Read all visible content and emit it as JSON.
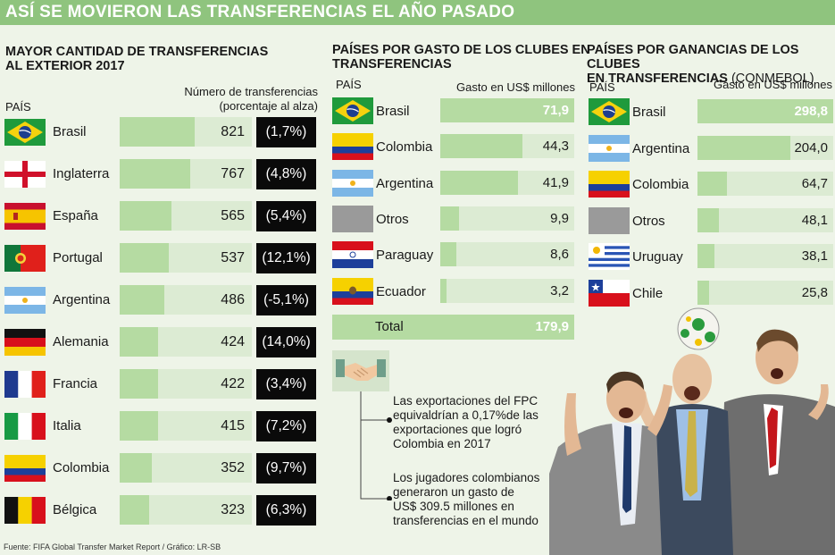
{
  "header": {
    "title": "ASÍ SE MOVIERON LAS TRANSFERENCIAS EL AÑO PASADO"
  },
  "left": {
    "title_line1": "MAYOR CANTIDAD DE TRANSFERENCIAS",
    "title_line2": "AL EXTERIOR 2017",
    "col_country": "PAÍS",
    "col_value_line1": "Número de transferencias",
    "col_value_line2": "(porcentaje al alza)"
  },
  "middle": {
    "title_line1": "PAÍSES POR GASTO DE LOS CLUBES EN",
    "title_line2": "TRANSFERENCIAS",
    "col_country": "PAÍS",
    "col_value": "Gasto en US$ millones",
    "total_label": "Total",
    "total_value": "179,9"
  },
  "right": {
    "title_line1": "PAÍSES POR GANANCIAS DE LOS CLUBES",
    "title_line2": "EN TRANSFERENCIAS",
    "title_suffix": "(CONMEBOL)",
    "col_country": "PAÍS",
    "col_value": "Gasto en US$ millones"
  },
  "notes": {
    "note1": [
      "Las exportaciones del FPC",
      "equivaldrían a 0,17%de las",
      "exportaciones que logró",
      "Colombia en 2017"
    ],
    "note2": [
      "Los jugadores colombianos",
      "generaron un gasto de",
      "US$ 309.5 millones en",
      "transferencias en el mundo"
    ]
  },
  "footer": {
    "source": "Fuente: FIFA Global Transfer Market Report / Gráfico: LR-SB"
  },
  "colors": {
    "accent": "#8fc47e",
    "bar_fill": "#b5dba2",
    "bar_track": "#dcebd3",
    "background": "#eef4e8",
    "badge": "#0a0a0a"
  },
  "chart_data": [
    {
      "type": "bar",
      "title": "MAYOR CANTIDAD DE TRANSFERENCIAS AL EXTERIOR 2017",
      "categories": [
        "Brasil",
        "Inglaterra",
        "España",
        "Portugal",
        "Argentina",
        "Alemania",
        "Francia",
        "Italia",
        "Colombia",
        "Bélgica"
      ],
      "values": [
        821,
        767,
        565,
        537,
        486,
        424,
        422,
        415,
        352,
        323
      ],
      "value_labels": [
        "821",
        "767",
        "565",
        "537",
        "486",
        "424",
        "422",
        "415",
        "352",
        "323"
      ],
      "change_labels": [
        "(1,7%)",
        "(4,8%)",
        "(5,4%)",
        "(12,1%)",
        "(-5,1%)",
        "(14,0%)",
        "(3,4%)",
        "(7,2%)",
        "(9,7%)",
        "(6,3%)"
      ],
      "flags": [
        "brazil-flag",
        "england-flag",
        "spain-flag",
        "portugal-flag",
        "argentina-flag",
        "germany-flag",
        "france-flag",
        "italy-flag",
        "colombia-flag",
        "belgium-flag"
      ],
      "ylim": [
        0,
        2000
      ]
    },
    {
      "type": "bar",
      "title": "PAÍSES POR GASTO DE LOS CLUBES EN TRANSFERENCIAS",
      "categories": [
        "Brasil",
        "Colombia",
        "Argentina",
        "Otros",
        "Paraguay",
        "Ecuador"
      ],
      "values": [
        71.9,
        44.3,
        41.9,
        9.9,
        8.6,
        3.2
      ],
      "value_labels": [
        "71,9",
        "44,3",
        "41,9",
        "9,9",
        "8,6",
        "3,2"
      ],
      "flags": [
        "brazil-flag",
        "colombia-flag",
        "argentina-flag",
        "others-flag",
        "paraguay-flag",
        "ecuador-flag"
      ],
      "ylim": [
        0,
        71.9
      ]
    },
    {
      "type": "bar",
      "title": "PAÍSES POR GANANCIAS DE LOS CLUBES EN TRANSFERENCIAS (CONMEBOL)",
      "categories": [
        "Brasil",
        "Argentina",
        "Colombia",
        "Otros",
        "Uruguay",
        "Chile"
      ],
      "values": [
        298.8,
        204.0,
        64.7,
        48.1,
        38.1,
        25.8
      ],
      "value_labels": [
        "298,8",
        "204,0",
        "64,7",
        "48,1",
        "38,1",
        "25,8"
      ],
      "flags": [
        "brazil-flag",
        "argentina-flag",
        "colombia-flag",
        "others-flag",
        "uruguay-flag",
        "chile-flag"
      ],
      "ylim": [
        0,
        298.8
      ]
    }
  ]
}
